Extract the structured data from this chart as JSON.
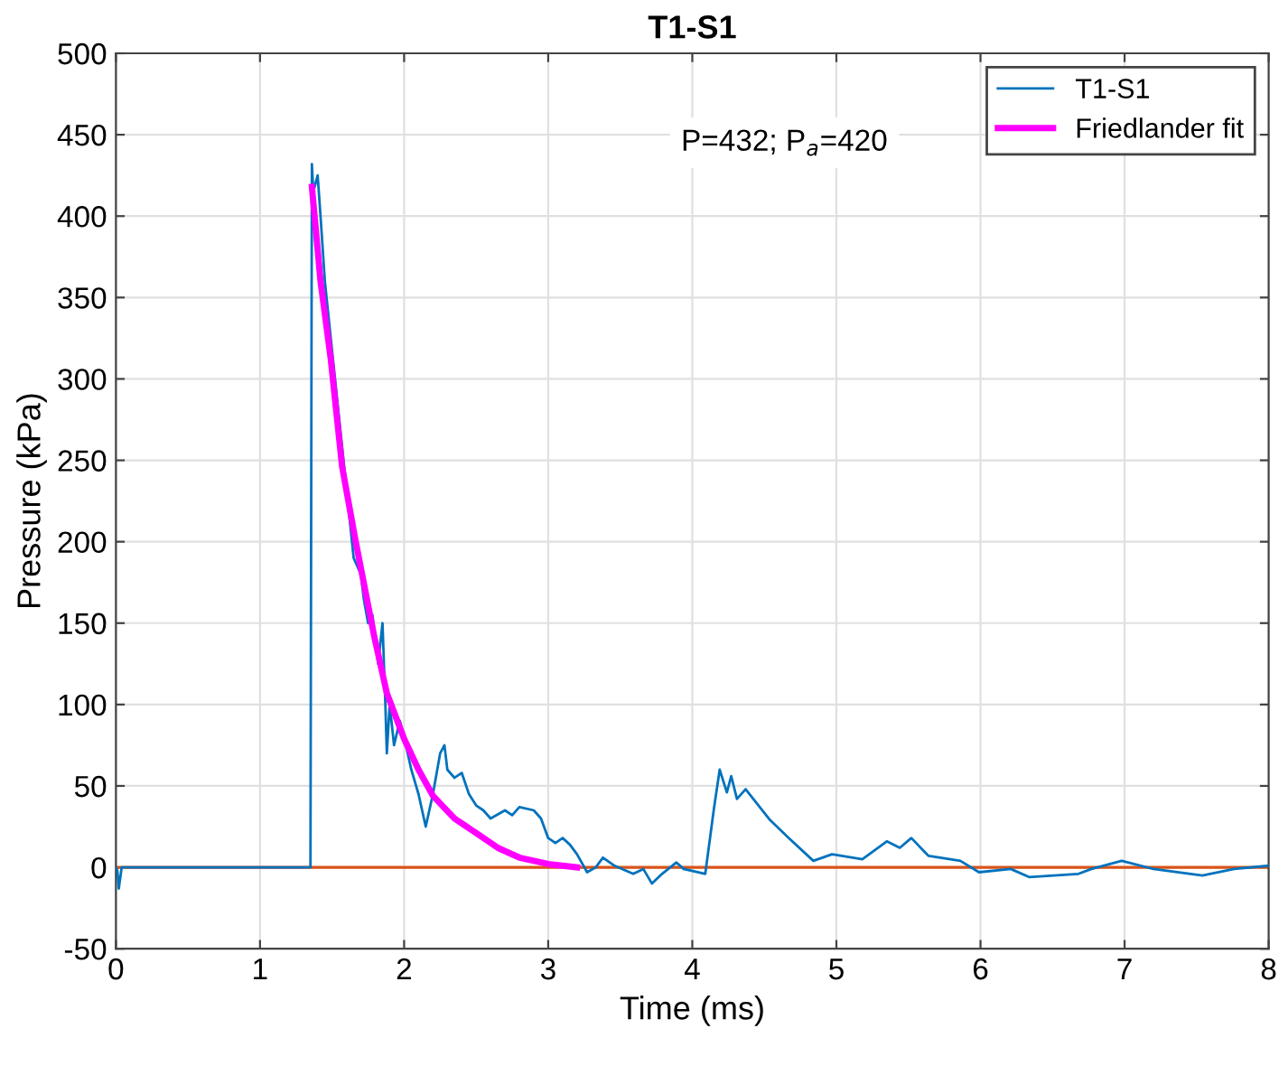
{
  "chart_data": {
    "type": "line",
    "title": "T1-S1",
    "xlabel": "Time (ms)",
    "ylabel": "Pressure (kPa)",
    "xlim": [
      0,
      8
    ],
    "xticks": [
      0,
      1,
      2,
      3,
      4,
      5,
      6,
      7,
      8
    ],
    "ylim": [
      -50,
      500
    ],
    "yticks": [
      -50,
      0,
      50,
      100,
      150,
      200,
      250,
      300,
      350,
      400,
      450,
      500
    ],
    "grid": true,
    "legend": "top right",
    "annotations": [
      "P=432; P$_{a}$=420"
    ],
    "ref_lines": [
      {
        "axis": "y",
        "value": 0,
        "color": "#d95319"
      }
    ],
    "series": [
      {
        "name": "T1-S1",
        "color": "#0072bd",
        "x": [
          0,
          0.01,
          0.02,
          0.04,
          0.1,
          1.34,
          1.35,
          1.36,
          1.37,
          1.4,
          1.42,
          1.45,
          1.65,
          1.7,
          1.72,
          1.75,
          1.78,
          1.8,
          1.82,
          1.85,
          1.87,
          1.88,
          1.9,
          1.93,
          1.97,
          2.0,
          2.05,
          2.1,
          2.15,
          2.2,
          2.25,
          2.28,
          2.3,
          2.35,
          2.4,
          2.45,
          2.5,
          2.55,
          2.6,
          2.7,
          2.75,
          2.8,
          2.9,
          2.95,
          3.0,
          3.05,
          3.1,
          3.15,
          3.2,
          3.27,
          3.33,
          3.38,
          3.46,
          3.59,
          3.66,
          3.72,
          3.79,
          3.89,
          3.94,
          4.09,
          4.15,
          4.19,
          4.24,
          4.27,
          4.31,
          4.37,
          4.54,
          4.67,
          4.84,
          4.97,
          5.18,
          5.35,
          5.44,
          5.52,
          5.64,
          5.86,
          5.99,
          6.21,
          6.34,
          6.68,
          6.77,
          6.98,
          7.2,
          7.54,
          7.76,
          8.0
        ],
        "values": [
          0,
          -2,
          -13,
          0,
          0,
          0,
          0,
          432,
          415,
          425,
          400,
          360,
          190,
          180,
          165,
          150,
          155,
          140,
          125,
          150,
          100,
          70,
          100,
          75,
          90,
          80,
          60,
          45,
          25,
          45,
          70,
          75,
          60,
          55,
          58,
          45,
          38,
          35,
          30,
          35,
          32,
          37,
          35,
          30,
          18,
          15,
          18,
          14,
          8,
          -3,
          0,
          6,
          1,
          -4,
          -1,
          -10,
          -4,
          3,
          -1,
          -4,
          36,
          60,
          46,
          56,
          42,
          48,
          29,
          18,
          4,
          8,
          5,
          16,
          12,
          18,
          7,
          4,
          -3,
          -1,
          -6,
          -4,
          -1,
          4,
          -1,
          -5,
          -1,
          1
        ]
      },
      {
        "name": "Friedlander fit",
        "color": "#ff00ff",
        "x": [
          1.36,
          1.42,
          1.49,
          1.57,
          1.66,
          1.79,
          1.88,
          2.0,
          2.1,
          2.2,
          2.35,
          2.5,
          2.65,
          2.8,
          3.0,
          3.2
        ],
        "values": [
          418,
          360,
          313,
          246,
          202,
          143,
          107,
          79,
          60,
          44,
          30,
          21,
          12,
          6,
          2,
          0
        ]
      }
    ]
  }
}
